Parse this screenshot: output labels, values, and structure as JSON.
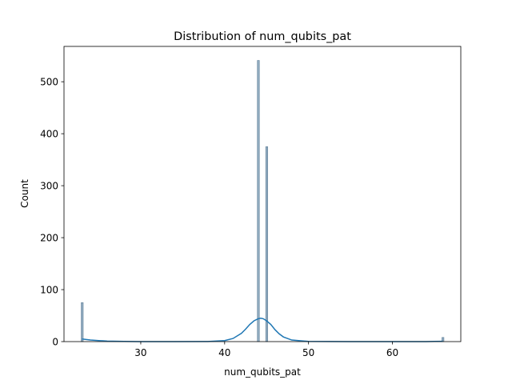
{
  "chart_data": {
    "type": "bar",
    "title": "Distribution of num_qubits_pat",
    "xlabel": "num_qubits_pat",
    "ylabel": "Count",
    "xlim": [
      20.85,
      68.15
    ],
    "ylim": [
      0,
      568
    ],
    "xticks": [
      30,
      40,
      50,
      60
    ],
    "yticks": [
      0,
      100,
      200,
      300,
      400,
      500
    ],
    "grid": false,
    "legend": "none",
    "bar_width": 0.2,
    "series": [
      {
        "kind": "histogram",
        "bars": [
          {
            "x": 23,
            "value": 75
          },
          {
            "x": 44,
            "value": 541
          },
          {
            "x": 45,
            "value": 375
          },
          {
            "x": 66,
            "value": 8
          }
        ]
      },
      {
        "kind": "kde",
        "x": [
          23,
          24,
          25,
          26,
          28,
          30,
          34,
          38,
          40,
          41,
          42,
          42.5,
          43,
          43.5,
          44,
          44.3,
          44.6,
          45,
          45.5,
          46,
          46.5,
          47,
          48,
          50,
          55,
          60,
          64,
          65,
          66
        ],
        "y": [
          5,
          3,
          2,
          1,
          0.3,
          0.1,
          0,
          0.2,
          2,
          6,
          16,
          24,
          33,
          40,
          44,
          45,
          44,
          40,
          33,
          23,
          15,
          9,
          3,
          0.4,
          0,
          0,
          0.1,
          0.3,
          0.6
        ]
      }
    ],
    "colors": {
      "bar_fill": "#7f9db5",
      "bar_edge": "#5f7f99",
      "kde_line": "#1f77b4"
    }
  }
}
